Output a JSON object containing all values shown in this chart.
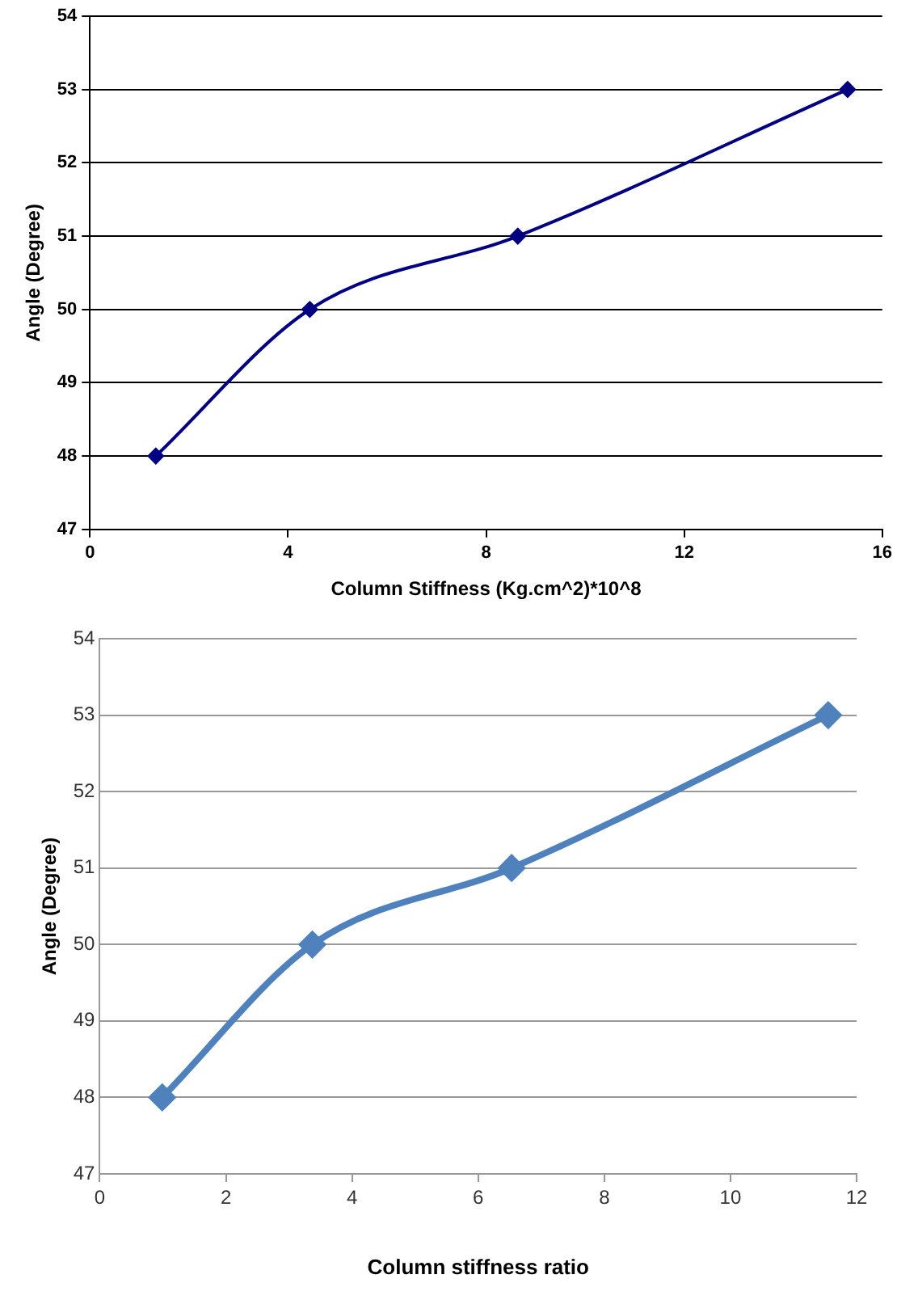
{
  "chart_data": [
    {
      "type": "line",
      "xlabel": "Column Stiffness (Kg.cm^2)*10^8",
      "ylabel": "Angle (Degree)",
      "x": [
        1.33,
        4.44,
        8.64,
        15.3
      ],
      "series": [
        {
          "color": "#000080",
          "values": [
            48,
            50,
            51,
            53
          ]
        }
      ],
      "xlim": [
        0,
        16
      ],
      "xticks": [
        0,
        4,
        8,
        12,
        16
      ],
      "ylim": [
        47,
        54
      ],
      "yticks": [
        47,
        48,
        49,
        50,
        51,
        52,
        53,
        54
      ],
      "grid": "y",
      "marker": "diamond",
      "line_style": "solid"
    },
    {
      "type": "line",
      "xlabel": "Column stiffness ratio",
      "ylabel": "Angle (Degree)",
      "x": [
        0.99,
        3.37,
        6.53,
        11.55
      ],
      "series": [
        {
          "color": "#4f81bd",
          "values": [
            48,
            50,
            51,
            53
          ]
        }
      ],
      "xlim": [
        0,
        12
      ],
      "xticks": [
        0,
        2,
        4,
        6,
        8,
        10,
        12
      ],
      "ylim": [
        47,
        54
      ],
      "yticks": [
        47,
        48,
        49,
        50,
        51,
        52,
        53,
        54
      ],
      "grid": "y",
      "marker": "diamond",
      "line_style": "solid"
    }
  ]
}
